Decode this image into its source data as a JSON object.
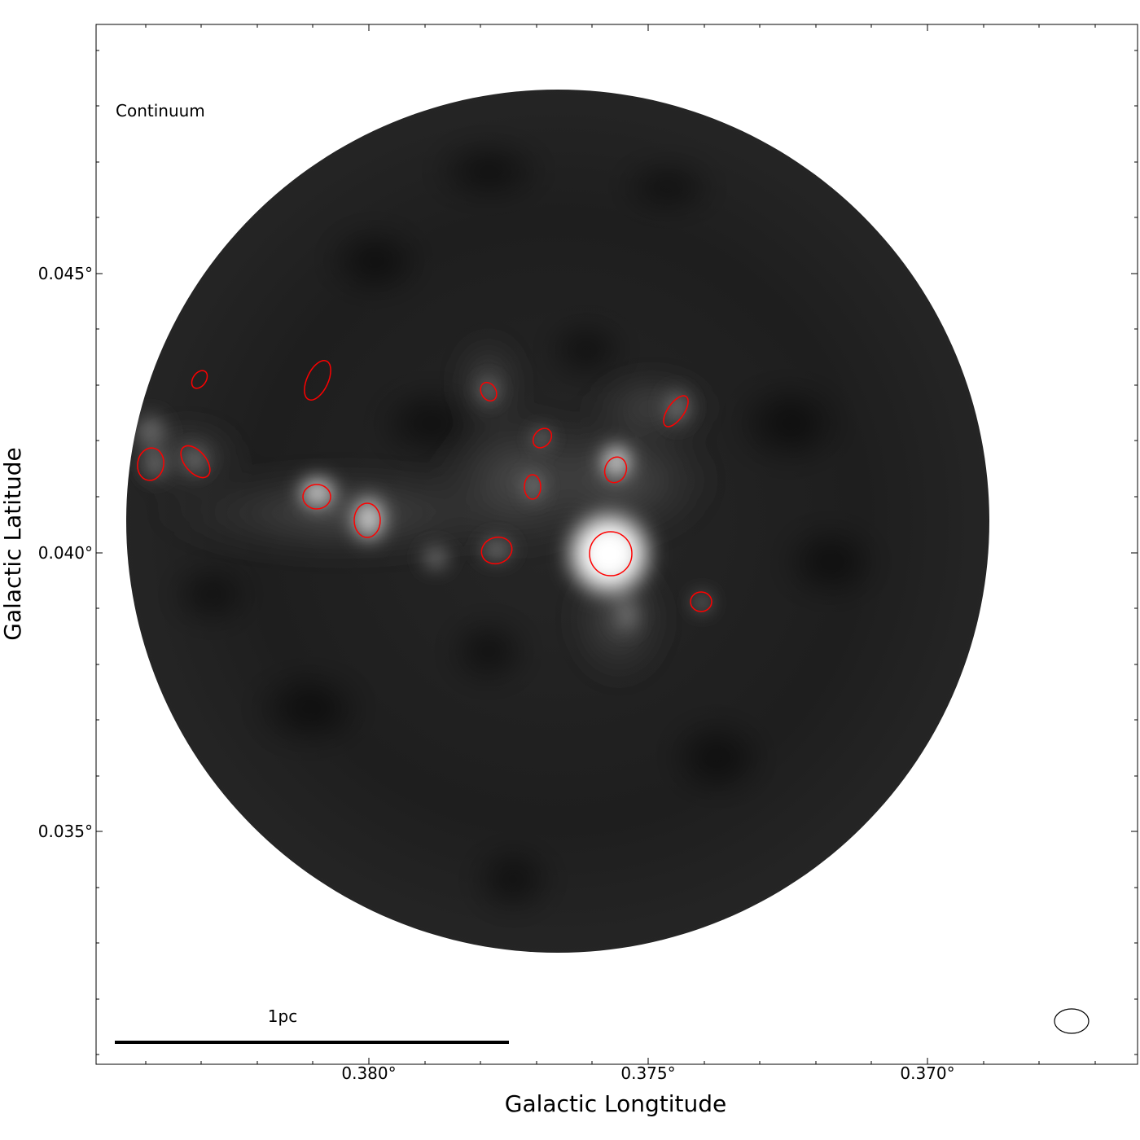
{
  "figure": {
    "panel_label": "Continuum",
    "x_axis_title": "Galactic Longtitude",
    "y_axis_title": "Galactic Latitude",
    "x_tick_labels": [
      "0.380°",
      "0.375°",
      "0.370°"
    ],
    "y_tick_labels": [
      "0.045°",
      "0.040°",
      "0.035°"
    ],
    "scalebar_label": "1pc",
    "colors": {
      "source_ellipse": "#ff0000",
      "beam": "#000000",
      "map_dark": "#0d0d0d",
      "map_bright": "#ffffff"
    }
  }
}
